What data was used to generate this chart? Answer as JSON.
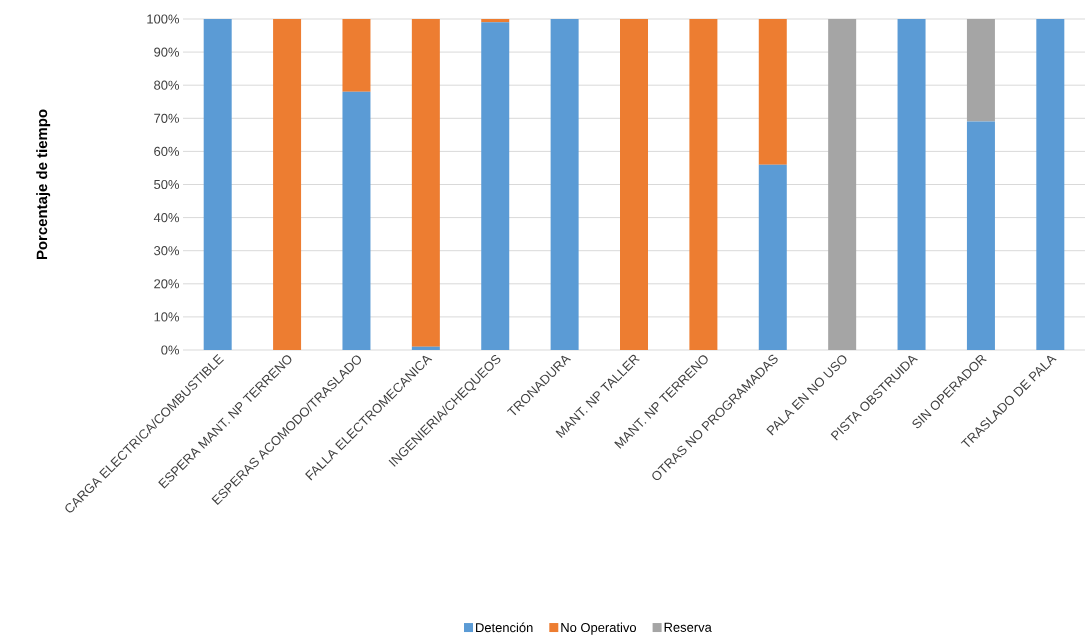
{
  "chart_data": {
    "type": "bar",
    "stacked": true,
    "ylabel": "Porcentaje de tiempo",
    "categories": [
      "CARGA ELECTRICA/COMBUSTIBLE",
      "ESPERA MANT. NP TERRENO",
      "ESPERAS ACOMODO/TRASLADO",
      "FALLA ELECTROMECANICA",
      "INGENIERIA/CHEQUEOS",
      "TRONADURA",
      "MANT. NP  TALLER",
      "MANT. NP TERRENO",
      "OTRAS NO PROGRAMADAS",
      "PALA EN NO USO",
      "PISTA OBSTRUIDA",
      "SIN OPERADOR",
      "TRASLADO DE PALA"
    ],
    "series": [
      {
        "name": "Detención",
        "color": "#5b9bd5",
        "values": [
          100,
          0,
          78,
          1,
          99,
          100,
          0,
          0,
          56,
          0,
          100,
          69,
          100
        ]
      },
      {
        "name": "No Operativo",
        "color": "#ed7d31",
        "values": [
          0,
          100,
          22,
          99,
          1,
          0,
          100,
          100,
          44,
          0,
          0,
          0,
          0
        ]
      },
      {
        "name": "Reserva",
        "color": "#a5a5a5",
        "values": [
          0,
          0,
          0,
          0,
          0,
          0,
          0,
          0,
          0,
          100,
          0,
          31,
          0
        ]
      }
    ],
    "ylim": [
      0,
      100
    ],
    "yticks": [
      {
        "value": 0,
        "label": "0%"
      },
      {
        "value": 10,
        "label": "10%"
      },
      {
        "value": 20,
        "label": "20%"
      },
      {
        "value": 30,
        "label": "30%"
      },
      {
        "value": 40,
        "label": "40%"
      },
      {
        "value": 50,
        "label": "50%"
      },
      {
        "value": 60,
        "label": "60%"
      },
      {
        "value": 70,
        "label": "70%"
      },
      {
        "value": 80,
        "label": "80%"
      },
      {
        "value": 90,
        "label": "90%"
      },
      {
        "value": 100,
        "label": "100%"
      }
    ],
    "grid": "y",
    "legend": "bottom"
  }
}
